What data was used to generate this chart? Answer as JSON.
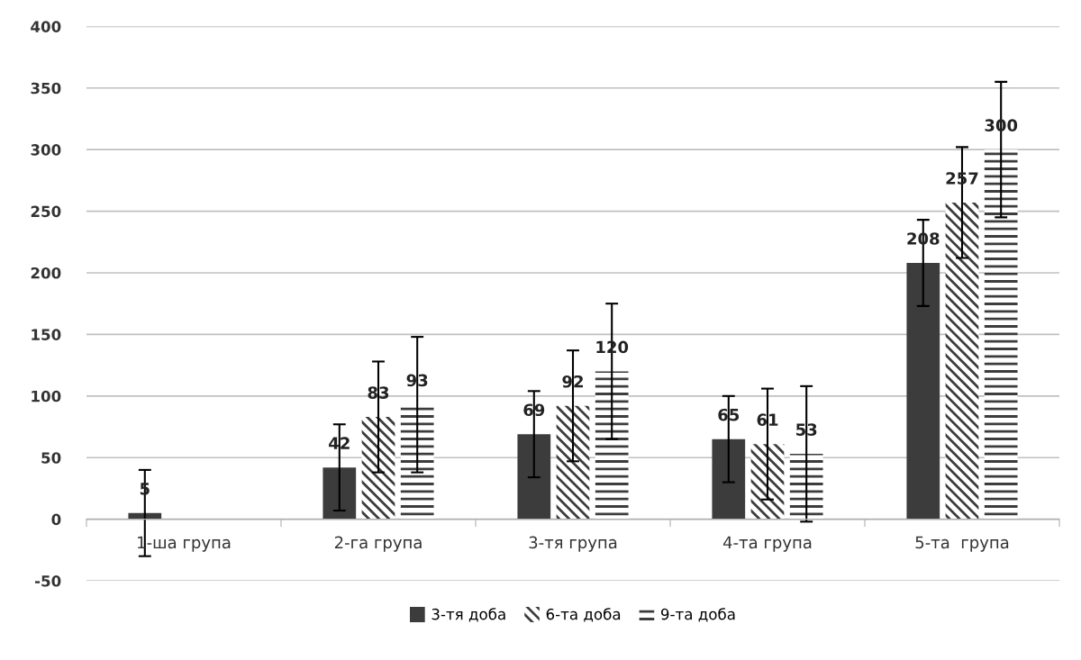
{
  "chart_data": {
    "type": "bar",
    "categories": [
      "1-ша група",
      "2-га група",
      "3-тя група",
      "4-та група",
      "5-та  група"
    ],
    "series": [
      {
        "name": "3-тя доба",
        "color": "#3c3c3c",
        "values": [
          5,
          42,
          69,
          65,
          208
        ],
        "errors": [
          35,
          35,
          35,
          35,
          35
        ]
      },
      {
        "name": "6-та доба",
        "color": "#3c3c3c",
        "values": [
          null,
          83,
          92,
          61,
          257
        ],
        "errors": [
          null,
          45,
          45,
          45,
          45
        ]
      },
      {
        "name": "9-та доба",
        "color": "#3c3c3c",
        "values": [
          null,
          93,
          120,
          53,
          300
        ],
        "errors": [
          null,
          55,
          55,
          55,
          55
        ]
      }
    ],
    "ylim": [
      -50,
      400
    ],
    "yticks": [
      -50,
      0,
      50,
      100,
      150,
      200,
      250,
      300,
      350,
      400
    ],
    "grid": "y",
    "legend": "bottom",
    "data_labels": true
  }
}
